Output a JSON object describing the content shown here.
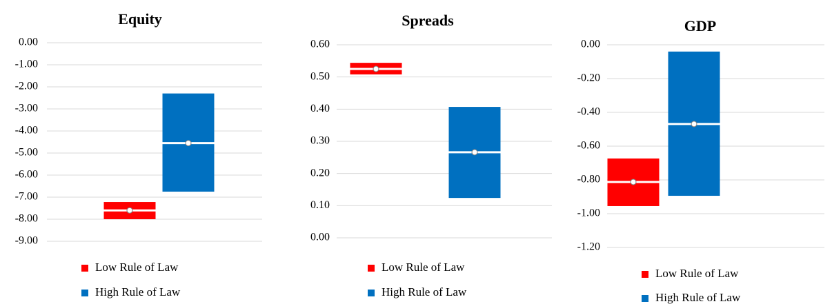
{
  "chart_data": [
    {
      "type": "rangebar",
      "title": "Equity",
      "ylim": [
        -9,
        0
      ],
      "yticks": [
        {
          "value": 0,
          "label": "0.00"
        },
        {
          "value": -1,
          "label": "-1.00"
        },
        {
          "value": -2,
          "label": "-2.00"
        },
        {
          "value": -3,
          "label": "-3.00"
        },
        {
          "value": -4,
          "label": "-4.00"
        },
        {
          "value": -5,
          "label": "-5.00"
        },
        {
          "value": -6,
          "label": "-6.00"
        },
        {
          "value": -7,
          "label": "-7.00"
        },
        {
          "value": -8,
          "label": "-8.00"
        },
        {
          "value": -9,
          "label": "-9.00"
        }
      ],
      "grid": true,
      "series": [
        {
          "name": "Low Rule of Law",
          "color": "#ff0000",
          "low": -8.0,
          "high": -7.22,
          "mid": -7.6
        },
        {
          "name": "High Rule of Law",
          "color": "#0070c0",
          "low": -6.75,
          "high": -2.3,
          "mid": -4.55
        }
      ]
    },
    {
      "type": "rangebar",
      "title": "Spreads",
      "ylim": [
        0,
        0.6
      ],
      "yticks": [
        {
          "value": 0,
          "label": "0.00"
        },
        {
          "value": 0.1,
          "label": "0.10"
        },
        {
          "value": 0.2,
          "label": "0.20"
        },
        {
          "value": 0.3,
          "label": "0.30"
        },
        {
          "value": 0.4,
          "label": "0.40"
        },
        {
          "value": 0.5,
          "label": "0.50"
        },
        {
          "value": 0.6,
          "label": "0.60"
        }
      ],
      "grid": true,
      "series": [
        {
          "name": "Low Rule of Law",
          "color": "#ff0000",
          "low": 0.508,
          "high": 0.544,
          "mid": 0.525
        },
        {
          "name": "High Rule of Law",
          "color": "#0070c0",
          "low": 0.124,
          "high": 0.407,
          "mid": 0.266
        }
      ]
    },
    {
      "type": "rangebar",
      "title": "GDP",
      "ylim": [
        -1.2,
        0
      ],
      "yticks": [
        {
          "value": 0,
          "label": "0.00"
        },
        {
          "value": -0.2,
          "label": "-0.20"
        },
        {
          "value": -0.4,
          "label": "-0.40"
        },
        {
          "value": -0.6,
          "label": "-0.60"
        },
        {
          "value": -0.8,
          "label": "-0.80"
        },
        {
          "value": -1.0,
          "label": "-1.00"
        },
        {
          "value": -1.2,
          "label": "-1.20"
        }
      ],
      "grid": true,
      "series": [
        {
          "name": "Low Rule of Law",
          "color": "#ff0000",
          "low": -0.955,
          "high": -0.673,
          "mid": -0.812
        },
        {
          "name": "High Rule of Law",
          "color": "#0070c0",
          "low": -0.894,
          "high": -0.04,
          "mid": -0.469
        }
      ]
    }
  ]
}
